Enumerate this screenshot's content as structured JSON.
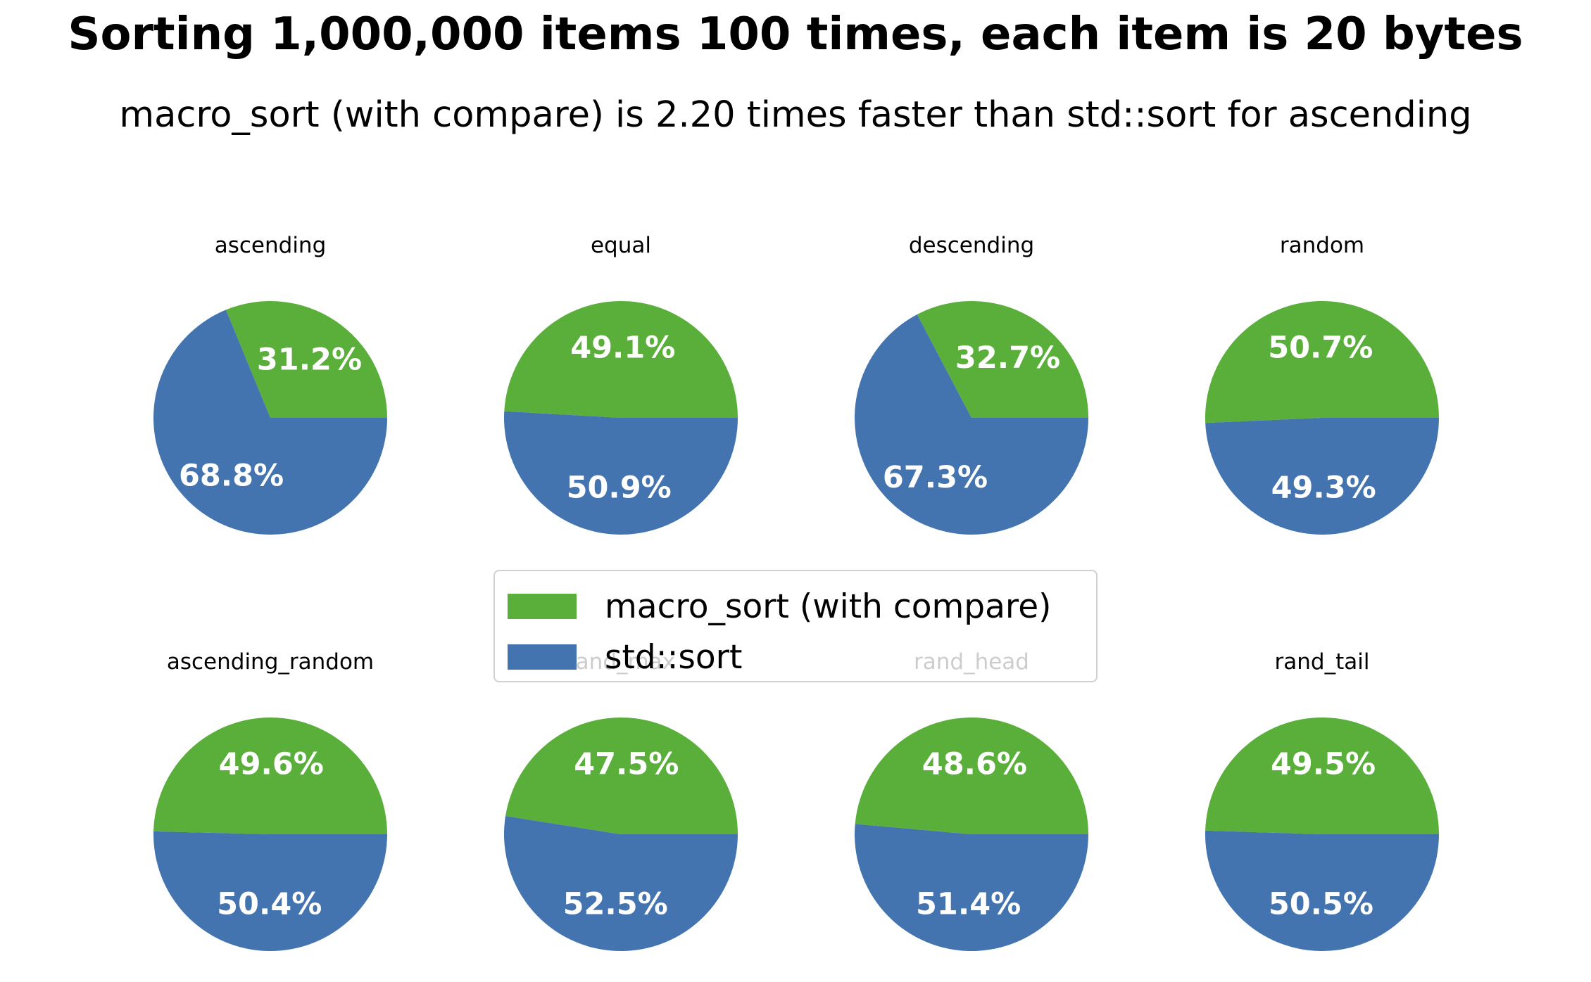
{
  "title": "Sorting 1,000,000 items 100 times, each item is 20 bytes",
  "subtitle": "macro_sort (with compare) is 2.20 times faster than std::sort for ascending",
  "colors": {
    "macro_sort": "#5aaf3a",
    "std_sort": "#4374b0"
  },
  "legend": [
    {
      "label": "macro_sort (with compare)",
      "color": "#5aaf3a"
    },
    {
      "label": "std::sort",
      "color": "#4374b0"
    }
  ],
  "chart_data": {
    "type": "pie",
    "series_names": [
      "macro_sort (with compare)",
      "std::sort"
    ],
    "pies": [
      {
        "title": "ascending",
        "values": [
          31.2,
          68.8
        ],
        "labels": [
          "31.2%",
          "68.8%"
        ]
      },
      {
        "title": "equal",
        "values": [
          49.1,
          50.9
        ],
        "labels": [
          "49.1%",
          "50.9%"
        ]
      },
      {
        "title": "descending",
        "values": [
          32.7,
          67.3
        ],
        "labels": [
          "32.7%",
          "67.3%"
        ]
      },
      {
        "title": "random",
        "values": [
          50.7,
          49.3
        ],
        "labels": [
          "50.7%",
          "49.3%"
        ]
      },
      {
        "title": "ascending_random",
        "values": [
          49.6,
          50.4
        ],
        "labels": [
          "49.6%",
          "50.4%"
        ]
      },
      {
        "title": "rand_max",
        "values": [
          47.5,
          52.5
        ],
        "labels": [
          "47.5%",
          "52.5%"
        ]
      },
      {
        "title": "rand_head",
        "values": [
          48.6,
          51.4
        ],
        "labels": [
          "48.6%",
          "51.4%"
        ]
      },
      {
        "title": "rand_tail",
        "values": [
          49.5,
          50.5
        ],
        "labels": [
          "49.5%",
          "50.5%"
        ]
      }
    ]
  }
}
